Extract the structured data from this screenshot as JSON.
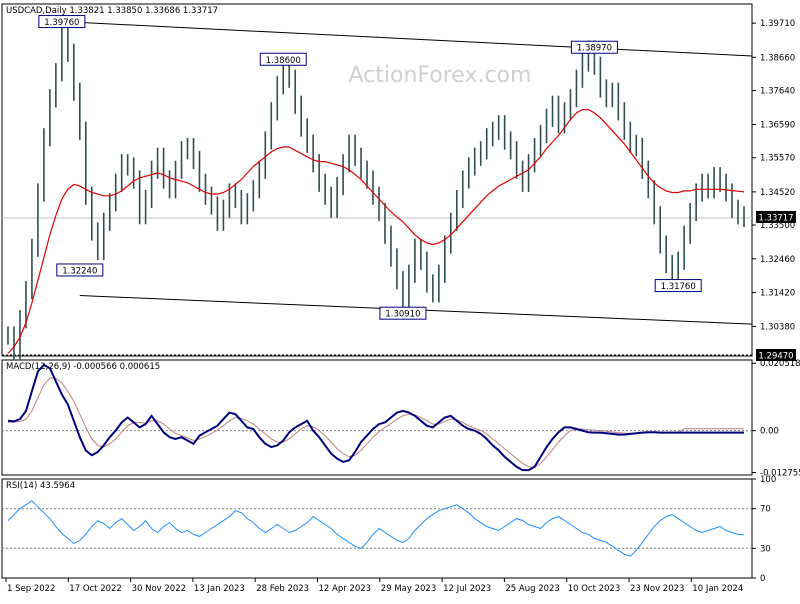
{
  "chart_data": [
    {
      "type": "line",
      "panel": "price",
      "header": "USDCAD,Daily  1.33821 1.33850 1.33686 1.33717",
      "watermark": "ActionForex.com",
      "ylim": [
        1.2947,
        1.403
      ],
      "y_ticks": [
        "1.39710",
        "1.38660",
        "1.37640",
        "1.36590",
        "1.35570",
        "1.34520",
        "1.33500",
        "1.32460",
        "1.31420",
        "1.30380"
      ],
      "x_labels": [
        "1 Sep 2022",
        "17 Oct 2022",
        "30 Nov 2022",
        "13 Jan 2023",
        "28 Feb 2023",
        "12 Apr 2023",
        "29 May 2023",
        "12 Jul 2023",
        "25 Aug 2023",
        "10 Oct 2023",
        "23 Nov 2023",
        "10 Jan 2024"
      ],
      "price_label": "1.33717",
      "current_price": 1.33717,
      "dashed_level": {
        "label": "1.29470",
        "value": 1.2947
      },
      "annotations": [
        {
          "label": "1.39760",
          "value": 1.3976,
          "date_index": 9
        },
        {
          "label": "1.38600",
          "value": 1.386,
          "date_index": 46
        },
        {
          "label": "1.32240",
          "value": 1.3224,
          "date_index": 12
        },
        {
          "label": "1.30910",
          "value": 1.3091,
          "date_index": 66
        },
        {
          "label": "1.38970",
          "value": 1.3897,
          "date_index": 98
        },
        {
          "label": "1.31760",
          "value": 1.3176,
          "date_index": 112
        }
      ],
      "trendlines": [
        {
          "name": "upper channel",
          "from": {
            "date_index": 9,
            "value": 1.3976
          },
          "to": {
            "date_index": 123,
            "value": 1.387
          }
        },
        {
          "name": "lower channel",
          "from": {
            "date_index": 12,
            "value": 1.3133
          },
          "to": {
            "date_index": 123,
            "value": 1.3045
          }
        }
      ],
      "colors": {
        "price": "#2f4f4f",
        "moving_average": "#e00000",
        "trendline": "#000000"
      },
      "price_series": [
        1.301,
        1.2965,
        1.306,
        1.315,
        1.328,
        1.345,
        1.362,
        1.374,
        1.382,
        1.395,
        1.388,
        1.376,
        1.364,
        1.344,
        1.333,
        1.327,
        1.336,
        1.342,
        1.348,
        1.354,
        1.353,
        1.349,
        1.338,
        1.343,
        1.352,
        1.356,
        1.349,
        1.346,
        1.352,
        1.358,
        1.359,
        1.355,
        1.348,
        1.344,
        1.341,
        1.336,
        1.34,
        1.345,
        1.343,
        1.338,
        1.342,
        1.346,
        1.352,
        1.361,
        1.37,
        1.378,
        1.384,
        1.38,
        1.372,
        1.365,
        1.36,
        1.354,
        1.348,
        1.344,
        1.34,
        1.347,
        1.354,
        1.36,
        1.356,
        1.352,
        1.349,
        1.344,
        1.339,
        1.332,
        1.325,
        1.318,
        1.312,
        1.32,
        1.328,
        1.324,
        1.317,
        1.314,
        1.32,
        1.329,
        1.336,
        1.343,
        1.349,
        1.353,
        1.356,
        1.358,
        1.362,
        1.364,
        1.366,
        1.361,
        1.358,
        1.352,
        1.348,
        1.354,
        1.359,
        1.363,
        1.368,
        1.372,
        1.366,
        1.37,
        1.374,
        1.38,
        1.385,
        1.389,
        1.384,
        1.377,
        1.374,
        1.376,
        1.37,
        1.364,
        1.36,
        1.359,
        1.352,
        1.346,
        1.338,
        1.329,
        1.323,
        1.319,
        1.324,
        1.332,
        1.339,
        1.345,
        1.348,
        1.346,
        1.35,
        1.348,
        1.345,
        1.34,
        1.338,
        1.3372
      ],
      "ma_series": [
        1.2955,
        1.2975,
        1.3005,
        1.305,
        1.311,
        1.318,
        1.325,
        1.332,
        1.338,
        1.343,
        1.346,
        1.3475,
        1.347,
        1.346,
        1.345,
        1.3445,
        1.344,
        1.344,
        1.3445,
        1.3455,
        1.347,
        1.3485,
        1.3495,
        1.35,
        1.3505,
        1.351,
        1.3505,
        1.3495,
        1.349,
        1.3485,
        1.348,
        1.347,
        1.346,
        1.345,
        1.3445,
        1.3445,
        1.345,
        1.346,
        1.3475,
        1.349,
        1.351,
        1.353,
        1.3545,
        1.356,
        1.3575,
        1.3585,
        1.359,
        1.359,
        1.358,
        1.357,
        1.356,
        1.355,
        1.3545,
        1.3545,
        1.354,
        1.3535,
        1.353,
        1.352,
        1.3505,
        1.349,
        1.347,
        1.345,
        1.343,
        1.341,
        1.339,
        1.3375,
        1.336,
        1.334,
        1.332,
        1.3305,
        1.3295,
        1.329,
        1.3295,
        1.3305,
        1.332,
        1.334,
        1.336,
        1.338,
        1.34,
        1.342,
        1.344,
        1.3455,
        1.347,
        1.348,
        1.349,
        1.35,
        1.351,
        1.352,
        1.354,
        1.356,
        1.3585,
        1.3605,
        1.3625,
        1.365,
        1.3675,
        1.3695,
        1.3705,
        1.3705,
        1.3695,
        1.368,
        1.366,
        1.364,
        1.362,
        1.36,
        1.3575,
        1.355,
        1.3525,
        1.35,
        1.348,
        1.3465,
        1.3455,
        1.345,
        1.345,
        1.3455,
        1.3455,
        1.346,
        1.346,
        1.346,
        1.346,
        1.346,
        1.3458,
        1.3456,
        1.3454,
        1.3452
      ]
    },
    {
      "type": "line",
      "panel": "macd",
      "header": "MACD(12,26,9) -0.000566 0.000615",
      "ylim": [
        -0.0135,
        0.0215
      ],
      "y_ticks": [
        "0.020518",
        "0.00",
        "-0.012755"
      ],
      "colors": {
        "macd": "#000080",
        "signal": "#c08080"
      },
      "series": [
        {
          "name": "MACD",
          "values": [
            0.003,
            0.0028,
            0.0035,
            0.006,
            0.012,
            0.018,
            0.02,
            0.019,
            0.015,
            0.011,
            0.008,
            0.003,
            -0.002,
            -0.006,
            -0.0075,
            -0.0065,
            -0.0045,
            -0.002,
            0.0,
            0.0025,
            0.004,
            0.0025,
            0.001,
            0.002,
            0.0045,
            0.002,
            -0.0005,
            -0.002,
            -0.0025,
            -0.002,
            -0.003,
            -0.004,
            -0.0015,
            -0.0005,
            0.0005,
            0.0015,
            0.0035,
            0.0055,
            0.005,
            0.003,
            0.001,
            0.0005,
            -0.002,
            -0.004,
            -0.005,
            -0.0045,
            -0.003,
            -0.0005,
            0.001,
            0.002,
            0.003,
            0.0,
            -0.002,
            -0.0045,
            -0.007,
            -0.0085,
            -0.0095,
            -0.009,
            -0.0065,
            -0.0035,
            -0.0015,
            0.0005,
            0.002,
            0.0025,
            0.004,
            0.0055,
            0.006,
            0.0055,
            0.0045,
            0.003,
            0.0015,
            0.001,
            0.0025,
            0.004,
            0.0045,
            0.003,
            0.0015,
            0.0005,
            0.0,
            -0.001,
            -0.0025,
            -0.0045,
            -0.006,
            -0.008,
            -0.0095,
            -0.011,
            -0.012,
            -0.012,
            -0.011,
            -0.008,
            -0.005,
            -0.0025,
            -0.0005,
            0.001,
            0.001,
            0.0005,
            0.0,
            -0.0005,
            -0.0006,
            -0.0006,
            -0.0008,
            -0.001,
            -0.0012,
            -0.0012,
            -0.001,
            -0.0008,
            -0.0006,
            -0.0005,
            -0.0005,
            -0.0006,
            -0.0006,
            -0.0006,
            -0.0006,
            -0.0006,
            -0.0006,
            -0.0006,
            -0.0006,
            -0.0006,
            -0.0006,
            -0.0006,
            -0.0006,
            -0.0006,
            -0.0006,
            -0.0006
          ]
        },
        {
          "name": "Signal",
          "values": [
            0.0025,
            0.0026,
            0.0028,
            0.0035,
            0.006,
            0.01,
            0.014,
            0.016,
            0.016,
            0.0145,
            0.012,
            0.009,
            0.005,
            0.001,
            -0.0025,
            -0.0045,
            -0.005,
            -0.004,
            -0.0025,
            -0.0005,
            0.0015,
            0.0025,
            0.0025,
            0.0022,
            0.003,
            0.003,
            0.002,
            0.0005,
            -0.0008,
            -0.0015,
            -0.0022,
            -0.003,
            -0.0025,
            -0.0018,
            -0.0008,
            0.0002,
            0.0015,
            0.003,
            0.004,
            0.0038,
            0.003,
            0.002,
            0.0005,
            -0.001,
            -0.0025,
            -0.0035,
            -0.0035,
            -0.0025,
            -0.001,
            0.0005,
            0.0015,
            0.0012,
            0.0,
            -0.0015,
            -0.0035,
            -0.0055,
            -0.007,
            -0.008,
            -0.0075,
            -0.006,
            -0.004,
            -0.002,
            -0.0003,
            0.001,
            0.0022,
            0.0035,
            0.0045,
            0.005,
            0.0048,
            0.004,
            0.003,
            0.002,
            0.002,
            0.0028,
            0.0035,
            0.0033,
            0.0025,
            0.0015,
            0.0007,
            0.0,
            -0.001,
            -0.0025,
            -0.004,
            -0.0055,
            -0.007,
            -0.0085,
            -0.01,
            -0.011,
            -0.0112,
            -0.01,
            -0.008,
            -0.0058,
            -0.0035,
            -0.0015,
            0.0,
            0.0005,
            0.0005,
            0.0003,
            0.0001,
            0.0,
            -0.0002,
            -0.0004,
            -0.0006,
            -0.0008,
            -0.0008,
            -0.0008,
            -0.0007,
            -0.0006,
            -0.0006,
            -0.0006,
            -0.0006,
            -0.0006,
            -0.0006,
            0.0006,
            0.0006,
            0.0006,
            0.0006,
            0.0006,
            0.0006,
            0.0006,
            0.0006,
            0.0006,
            0.0006,
            0.0006
          ]
        }
      ]
    },
    {
      "type": "line",
      "panel": "rsi",
      "header": "RSI(14) 43.5964",
      "ylim": [
        0,
        100
      ],
      "y_ticks": [
        "100",
        "70",
        "30",
        "0"
      ],
      "levels": [
        70,
        30
      ],
      "colors": {
        "rsi": "#1e90ff"
      },
      "series": [
        {
          "name": "RSI(14)",
          "values": [
            58,
            64,
            70,
            74,
            78,
            72,
            66,
            60,
            52,
            45,
            40,
            35,
            38,
            44,
            52,
            58,
            55,
            50,
            56,
            60,
            54,
            48,
            52,
            58,
            50,
            46,
            52,
            56,
            50,
            46,
            48,
            44,
            42,
            46,
            50,
            54,
            58,
            62,
            68,
            66,
            60,
            56,
            50,
            46,
            50,
            54,
            50,
            46,
            48,
            52,
            56,
            62,
            58,
            54,
            50,
            44,
            40,
            36,
            32,
            30,
            36,
            44,
            50,
            46,
            42,
            38,
            36,
            40,
            48,
            54,
            60,
            64,
            68,
            70,
            72,
            74,
            70,
            66,
            60,
            56,
            52,
            50,
            48,
            52,
            56,
            60,
            58,
            54,
            52,
            50,
            56,
            60,
            62,
            58,
            54,
            50,
            46,
            44,
            40,
            38,
            36,
            32,
            28,
            24,
            22,
            28,
            36,
            44,
            52,
            58,
            62,
            64,
            60,
            56,
            52,
            48,
            46,
            48,
            50,
            52,
            48,
            46,
            44,
            43.6
          ]
        }
      ]
    }
  ]
}
